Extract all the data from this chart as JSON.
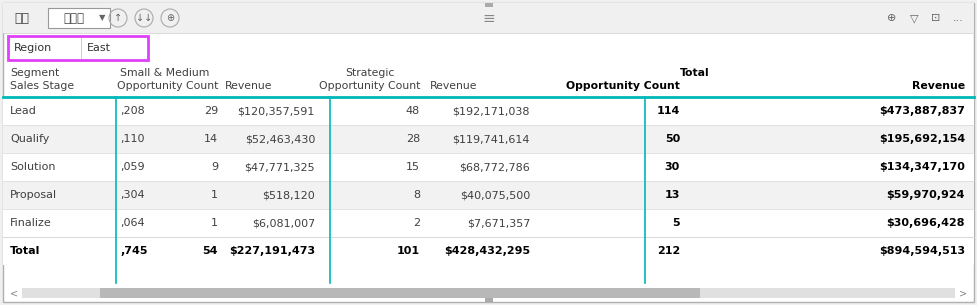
{
  "toolbar": {
    "left_text": "鑽研",
    "dropdown_text": "資料列",
    "bg_color": "#f0f0f0"
  },
  "filter_box": {
    "label": "Region",
    "value": "East",
    "border_color": "#e040fb"
  },
  "data_rows": [
    [
      "Lead",
      ",208",
      "29",
      "$120,357,591",
      "48",
      "$192,171,038",
      "114",
      "$473,887,837"
    ],
    [
      "Qualify",
      ",110",
      "14",
      "$52,463,430",
      "28",
      "$119,741,614",
      "50",
      "$195,692,154"
    ],
    [
      "Solution",
      ",059",
      "9",
      "$47,771,325",
      "15",
      "$68,772,786",
      "30",
      "$134,347,170"
    ],
    [
      "Proposal",
      ",304",
      "1",
      "$518,120",
      "8",
      "$40,075,500",
      "13",
      "$59,970,924"
    ],
    [
      "Finalize",
      ",064",
      "1",
      "$6,081,007",
      "2",
      "$7,671,357",
      "5",
      "$30,696,428"
    ]
  ],
  "total_row": [
    "Total",
    ",745",
    "54",
    "$227,191,473",
    "101",
    "$428,432,295",
    "212",
    "$894,594,513"
  ],
  "row_bg_colors": [
    "#ffffff",
    "#f2f2f2",
    "#ffffff",
    "#f2f2f2",
    "#ffffff"
  ],
  "teal_line_color": "#00b8b8",
  "text_color": "#404040",
  "bold_color": "#000000",
  "grid_color": "#d8d8d8",
  "outer_border": "#b0b0b0",
  "white": "#ffffff",
  "fig_bg": "#f0f0f0"
}
